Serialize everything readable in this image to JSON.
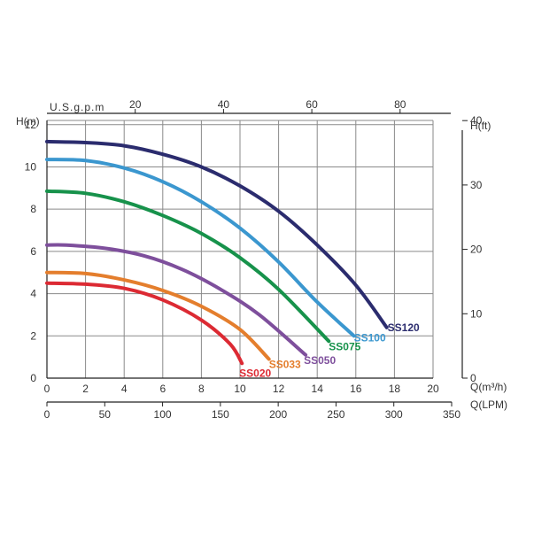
{
  "chart_data": {
    "type": "line",
    "axes": {
      "h_m": {
        "label": "H(m)",
        "ticks": [
          0,
          2,
          4,
          6,
          8,
          10,
          12
        ],
        "range": [
          0,
          12.2
        ]
      },
      "h_ft": {
        "label": "H(ft)",
        "ticks": [
          0,
          10,
          20,
          30,
          40
        ]
      },
      "q_m3h": {
        "label": "Q(m³/h)",
        "ticks": [
          0,
          2,
          4,
          6,
          8,
          10,
          12,
          14,
          16,
          18,
          20
        ],
        "range": [
          0,
          20
        ]
      },
      "usgpm": {
        "label": "U.S.g.p.m",
        "ticks": [
          20,
          40,
          60,
          80
        ]
      },
      "q_lpm": {
        "label": "Q(LPM)",
        "ticks": [
          0,
          50,
          100,
          150,
          200,
          250,
          300,
          350
        ]
      }
    },
    "series": [
      {
        "name": "SS120",
        "color": "#2b2c6e",
        "points": [
          [
            0,
            11.2
          ],
          [
            2,
            11.15
          ],
          [
            4,
            11.0
          ],
          [
            6,
            10.6
          ],
          [
            8,
            10.0
          ],
          [
            10,
            9.1
          ],
          [
            12,
            7.9
          ],
          [
            14,
            6.3
          ],
          [
            16,
            4.4
          ],
          [
            17.6,
            2.4
          ]
        ]
      },
      {
        "name": "SS100",
        "color": "#3b97cf",
        "points": [
          [
            0,
            10.35
          ],
          [
            2,
            10.3
          ],
          [
            4,
            9.95
          ],
          [
            6,
            9.3
          ],
          [
            8,
            8.35
          ],
          [
            10,
            7.1
          ],
          [
            12,
            5.5
          ],
          [
            14,
            3.6
          ],
          [
            15.9,
            2.0
          ]
        ]
      },
      {
        "name": "SS075",
        "color": "#17924b",
        "points": [
          [
            0,
            8.85
          ],
          [
            2,
            8.75
          ],
          [
            4,
            8.35
          ],
          [
            6,
            7.7
          ],
          [
            8,
            6.85
          ],
          [
            10,
            5.7
          ],
          [
            12,
            4.2
          ],
          [
            14.6,
            1.75
          ]
        ]
      },
      {
        "name": "SS050",
        "color": "#7e4f9c",
        "points": [
          [
            0,
            6.3
          ],
          [
            1,
            6.3
          ],
          [
            3,
            6.15
          ],
          [
            5,
            5.8
          ],
          [
            7,
            5.15
          ],
          [
            9,
            4.2
          ],
          [
            11,
            3.0
          ],
          [
            13.4,
            1.1
          ]
        ]
      },
      {
        "name": "SS033",
        "color": "#e47e2d",
        "points": [
          [
            0,
            5.0
          ],
          [
            2,
            4.95
          ],
          [
            4,
            4.65
          ],
          [
            6,
            4.15
          ],
          [
            8,
            3.4
          ],
          [
            10,
            2.3
          ],
          [
            11.5,
            0.9
          ]
        ]
      },
      {
        "name": "SS020",
        "color": "#dc2a33",
        "points": [
          [
            0,
            4.5
          ],
          [
            2,
            4.45
          ],
          [
            4,
            4.25
          ],
          [
            6,
            3.7
          ],
          [
            8,
            2.75
          ],
          [
            9.5,
            1.6
          ],
          [
            10.1,
            0.7
          ]
        ]
      }
    ],
    "grid": true
  }
}
